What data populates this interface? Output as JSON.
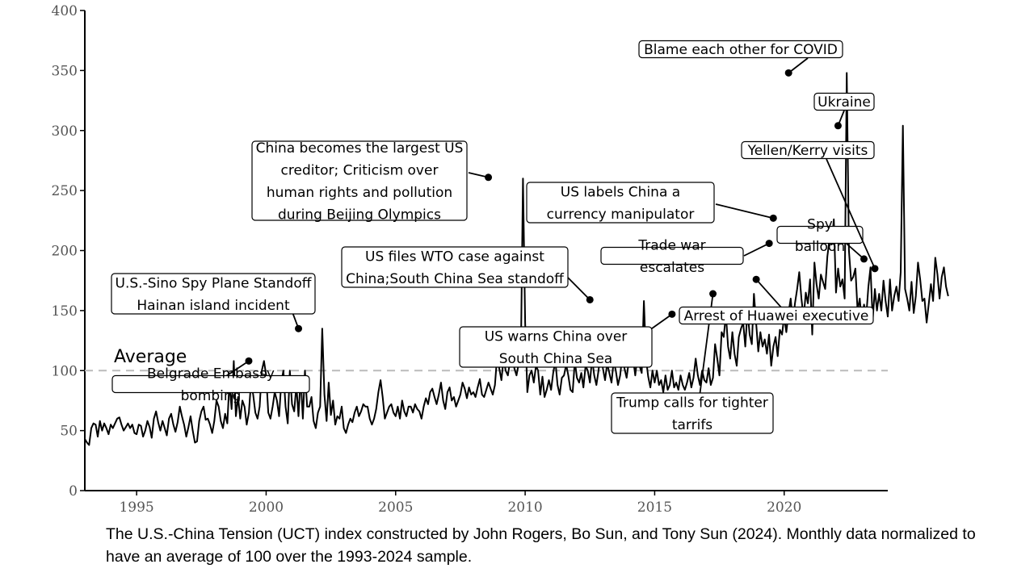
{
  "caption": "The U.S.-China Tension (UCT) index constructed by John Rogers, Bo Sun, and Tony Sun (2024). Monthly data normalized to have an average of 100 over the 1993-2024 sample.",
  "chart_data": {
    "type": "line",
    "title": "",
    "xlabel": "",
    "ylabel": "",
    "xlim": [
      1993.0,
      2024.0
    ],
    "ylim": [
      0,
      400
    ],
    "x_ticks": [
      1995,
      2000,
      2005,
      2010,
      2015,
      2020
    ],
    "y_ticks": [
      0,
      50,
      100,
      150,
      200,
      250,
      300,
      350,
      400
    ],
    "grid": false,
    "reference_line": {
      "value": 100,
      "label": "Average",
      "style": "dashed"
    },
    "series": [
      {
        "frequency": "monthly",
        "start": 1993.0,
        "step": 0.0833333,
        "values": [
          43,
          40,
          38,
          52,
          56,
          55,
          45,
          58,
          50,
          56,
          52,
          47,
          55,
          52,
          56,
          60,
          61,
          55,
          50,
          53,
          56,
          52,
          55,
          48,
          47,
          55,
          54,
          45,
          50,
          58,
          53,
          44,
          60,
          66,
          57,
          50,
          58,
          52,
          46,
          60,
          64,
          55,
          49,
          57,
          70,
          62,
          55,
          45,
          53,
          62,
          50,
          40,
          41,
          58,
          66,
          70,
          59,
          60,
          55,
          48,
          58,
          75,
          70,
          58,
          52,
          64,
          56,
          90,
          68,
          108,
          62,
          78,
          60,
          75,
          70,
          55,
          65,
          90,
          80,
          65,
          60,
          70,
          100,
          108,
          96,
          65,
          60,
          70,
          82,
          75,
          62,
          90,
          100,
          70,
          56,
          100,
          72,
          66,
          88,
          62,
          95,
          60,
          100,
          70,
          70,
          78,
          58,
          52,
          65,
          70,
          135,
          80,
          58,
          90,
          63,
          75,
          55,
          62,
          60,
          70,
          52,
          48,
          55,
          60,
          57,
          65,
          70,
          62,
          66,
          72,
          70,
          70,
          60,
          55,
          60,
          68,
          82,
          92,
          78,
          60,
          65,
          70,
          72,
          65,
          62,
          70,
          60,
          75,
          66,
          62,
          70,
          70,
          65,
          72,
          68,
          66,
          60,
          70,
          77,
          72,
          82,
          85,
          78,
          72,
          80,
          90,
          75,
          68,
          82,
          86,
          75,
          78,
          70,
          75,
          80,
          90,
          85,
          77,
          86,
          80,
          82,
          78,
          86,
          93,
          80,
          78,
          84,
          90,
          85,
          80,
          88,
          112,
          102,
          92,
          110,
          100,
          96,
          108,
          120,
          102,
          96,
          106,
          113,
          260,
          140,
          82,
          96,
          100,
          90,
          104,
          100,
          80,
          95,
          78,
          84,
          92,
          84,
          98,
          108,
          88,
          80,
          94,
          96,
          105,
          96,
          84,
          82,
          108,
          94,
          90,
          98,
          86,
          104,
          100,
          90,
          110,
          96,
          88,
          100,
          116,
          102,
          92,
          106,
          98,
          90,
          108,
          100,
          88,
          96,
          112,
          102,
          94,
          108,
          130,
          110,
          96,
          112,
          104,
          98,
          158,
          110,
          95,
          86,
          100,
          90,
          100,
          88,
          92,
          82,
          96,
          84,
          88,
          100,
          86,
          90,
          84,
          96,
          88,
          84,
          90,
          98,
          86,
          94,
          110,
          96,
          88,
          100,
          92,
          90,
          102,
          88,
          94,
          122,
          110,
          96,
          132,
          128,
          147,
          120,
          110,
          132,
          114,
          104,
          128,
          135,
          140,
          120,
          150,
          130,
          122,
          164,
          140,
          116,
          132,
          120,
          126,
          114,
          130,
          104,
          120,
          128,
          112,
          134,
          130,
          145,
          132,
          148,
          160,
          140,
          156,
          168,
          182,
          160,
          144,
          165,
          156,
          176,
          130,
          190,
          172,
          160,
          180,
          174,
          168,
          195,
          210,
          205,
          226,
          165,
          185,
          170,
          176,
          160,
          348,
          200,
          175,
          178,
          185,
          150,
          160,
          140,
          155,
          145,
          170,
          186,
          142,
          168,
          150,
          164,
          150,
          175,
          158,
          145,
          176,
          150,
          162,
          170,
          158,
          182,
          304,
          168,
          160,
          150,
          174,
          148,
          162,
          190,
          176,
          158,
          160,
          140,
          156,
          172,
          158,
          194,
          180,
          160,
          178,
          186,
          170,
          162
        ]
      }
    ],
    "annotations": [
      {
        "label": "Belgrade Embassy bombing",
        "x": 1999.33,
        "y": 108
      },
      {
        "label": "U.S.-Sino Spy Plane Standoff Hainan island incident",
        "x": 2001.25,
        "y": 135
      },
      {
        "label": "China becomes the largest US creditor; Criticism over human rights and pollution during Beijing Olympics",
        "x": 2008.58,
        "y": 261
      },
      {
        "label": "US files WTO case against China;South China Sea standoff",
        "x": 2012.5,
        "y": 159
      },
      {
        "label": "US warns China over South China Sea",
        "x": 2015.67,
        "y": 147
      },
      {
        "label": "Trump calls for tighter tarrifs",
        "x": 2017.25,
        "y": 164
      },
      {
        "label": "Arrest of Huawei executive",
        "x": 2018.92,
        "y": 176
      },
      {
        "label": "Trade war escalates",
        "x": 2019.42,
        "y": 206
      },
      {
        "label": "US labels China a currency manipulator",
        "x": 2019.58,
        "y": 227
      },
      {
        "label": "Blame each other for COVID",
        "x": 2020.17,
        "y": 348
      },
      {
        "label": "Ukraine",
        "x": 2022.08,
        "y": 304
      },
      {
        "label": "Spy balloon",
        "x": 2023.08,
        "y": 193
      },
      {
        "label": "Yellen/Kerry visits",
        "x": 2023.5,
        "y": 185
      }
    ]
  }
}
